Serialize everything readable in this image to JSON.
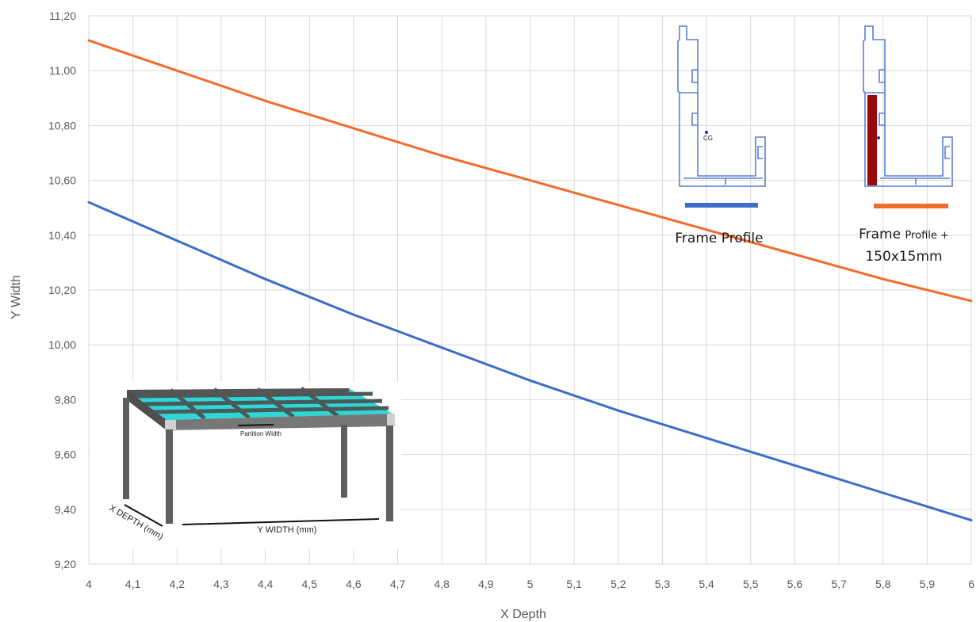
{
  "chart_data": {
    "type": "line",
    "title": "",
    "xlabel": "X Depth",
    "ylabel": "Y Width",
    "xlim": [
      4,
      6
    ],
    "ylim": [
      9.2,
      11.2
    ],
    "x_ticks": [
      "4",
      "4,1",
      "4,2",
      "4,3",
      "4,4",
      "4,5",
      "4,6",
      "4,7",
      "4,8",
      "4,9",
      "5",
      "5,1",
      "5,2",
      "5,3",
      "5,4",
      "5,5",
      "5,6",
      "5,7",
      "5,8",
      "5,9",
      "6"
    ],
    "y_ticks": [
      "9,20",
      "9,40",
      "9,60",
      "9,80",
      "10,00",
      "10,20",
      "10,40",
      "10,60",
      "10,80",
      "11,00",
      "11,20"
    ],
    "grid": true,
    "series": [
      {
        "name": "Frame Profile",
        "color": "#3d6cc9",
        "x": [
          4,
          4.2,
          4.4,
          4.6,
          4.8,
          5.0,
          5.2,
          5.4,
          5.6,
          5.8,
          6.0
        ],
        "y": [
          10.52,
          10.38,
          10.24,
          10.11,
          9.99,
          9.87,
          9.76,
          9.66,
          9.56,
          9.46,
          9.36
        ]
      },
      {
        "name": "Frame Profile + 150x15mm",
        "color": "#f26b2d",
        "x": [
          4,
          4.2,
          4.4,
          4.6,
          4.8,
          5.0,
          5.2,
          5.4,
          5.6,
          5.8,
          6.0
        ],
        "y": [
          11.11,
          11.0,
          10.89,
          10.79,
          10.69,
          10.6,
          10.51,
          10.42,
          10.33,
          10.24,
          10.16
        ]
      }
    ],
    "legend": {
      "placement": "top-right",
      "entries": [
        {
          "label": "Frame Profile",
          "color": "#3d6cc9"
        },
        {
          "label_main": "Frame ",
          "label_small": "Profile +",
          "label_line2": "150x15mm",
          "color": "#f26b2d"
        }
      ]
    },
    "annotations": {
      "partition_width": "Partition Width",
      "x_depth_mm": "X DEPTH (mm)",
      "y_width_mm": "Y WIDTH (mm)",
      "cg": "CG"
    }
  },
  "colors": {
    "grid": "#d9d9d9",
    "profile_outline": "#5a7fd6",
    "reinforcement": "#9b0a0a",
    "frame_top": "#2fd6d6",
    "frame_steel": "#6e6e6e"
  }
}
